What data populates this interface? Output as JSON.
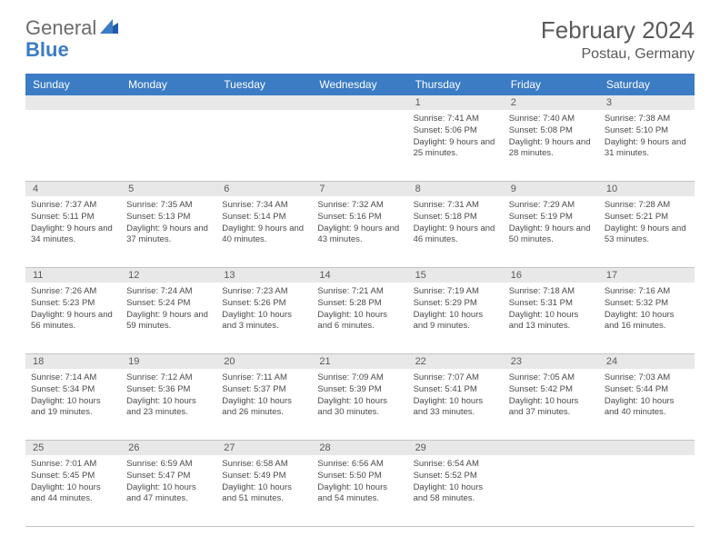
{
  "logo": {
    "word1": "General",
    "word2": "Blue"
  },
  "title": "February 2024",
  "location": "Postau, Germany",
  "colors": {
    "header_bg": "#3b7cc4",
    "daynum_bg": "#e8e8e8",
    "border": "#c4c4c4",
    "text": "#4a4a4a"
  },
  "dayNames": [
    "Sunday",
    "Monday",
    "Tuesday",
    "Wednesday",
    "Thursday",
    "Friday",
    "Saturday"
  ],
  "weeks": [
    {
      "nums": [
        "",
        "",
        "",
        "",
        "1",
        "2",
        "3"
      ],
      "cells": [
        null,
        null,
        null,
        null,
        {
          "sunrise": "Sunrise: 7:41 AM",
          "sunset": "Sunset: 5:06 PM",
          "daylight": "Daylight: 9 hours and 25 minutes."
        },
        {
          "sunrise": "Sunrise: 7:40 AM",
          "sunset": "Sunset: 5:08 PM",
          "daylight": "Daylight: 9 hours and 28 minutes."
        },
        {
          "sunrise": "Sunrise: 7:38 AM",
          "sunset": "Sunset: 5:10 PM",
          "daylight": "Daylight: 9 hours and 31 minutes."
        }
      ]
    },
    {
      "nums": [
        "4",
        "5",
        "6",
        "7",
        "8",
        "9",
        "10"
      ],
      "cells": [
        {
          "sunrise": "Sunrise: 7:37 AM",
          "sunset": "Sunset: 5:11 PM",
          "daylight": "Daylight: 9 hours and 34 minutes."
        },
        {
          "sunrise": "Sunrise: 7:35 AM",
          "sunset": "Sunset: 5:13 PM",
          "daylight": "Daylight: 9 hours and 37 minutes."
        },
        {
          "sunrise": "Sunrise: 7:34 AM",
          "sunset": "Sunset: 5:14 PM",
          "daylight": "Daylight: 9 hours and 40 minutes."
        },
        {
          "sunrise": "Sunrise: 7:32 AM",
          "sunset": "Sunset: 5:16 PM",
          "daylight": "Daylight: 9 hours and 43 minutes."
        },
        {
          "sunrise": "Sunrise: 7:31 AM",
          "sunset": "Sunset: 5:18 PM",
          "daylight": "Daylight: 9 hours and 46 minutes."
        },
        {
          "sunrise": "Sunrise: 7:29 AM",
          "sunset": "Sunset: 5:19 PM",
          "daylight": "Daylight: 9 hours and 50 minutes."
        },
        {
          "sunrise": "Sunrise: 7:28 AM",
          "sunset": "Sunset: 5:21 PM",
          "daylight": "Daylight: 9 hours and 53 minutes."
        }
      ]
    },
    {
      "nums": [
        "11",
        "12",
        "13",
        "14",
        "15",
        "16",
        "17"
      ],
      "cells": [
        {
          "sunrise": "Sunrise: 7:26 AM",
          "sunset": "Sunset: 5:23 PM",
          "daylight": "Daylight: 9 hours and 56 minutes."
        },
        {
          "sunrise": "Sunrise: 7:24 AM",
          "sunset": "Sunset: 5:24 PM",
          "daylight": "Daylight: 9 hours and 59 minutes."
        },
        {
          "sunrise": "Sunrise: 7:23 AM",
          "sunset": "Sunset: 5:26 PM",
          "daylight": "Daylight: 10 hours and 3 minutes."
        },
        {
          "sunrise": "Sunrise: 7:21 AM",
          "sunset": "Sunset: 5:28 PM",
          "daylight": "Daylight: 10 hours and 6 minutes."
        },
        {
          "sunrise": "Sunrise: 7:19 AM",
          "sunset": "Sunset: 5:29 PM",
          "daylight": "Daylight: 10 hours and 9 minutes."
        },
        {
          "sunrise": "Sunrise: 7:18 AM",
          "sunset": "Sunset: 5:31 PM",
          "daylight": "Daylight: 10 hours and 13 minutes."
        },
        {
          "sunrise": "Sunrise: 7:16 AM",
          "sunset": "Sunset: 5:32 PM",
          "daylight": "Daylight: 10 hours and 16 minutes."
        }
      ]
    },
    {
      "nums": [
        "18",
        "19",
        "20",
        "21",
        "22",
        "23",
        "24"
      ],
      "cells": [
        {
          "sunrise": "Sunrise: 7:14 AM",
          "sunset": "Sunset: 5:34 PM",
          "daylight": "Daylight: 10 hours and 19 minutes."
        },
        {
          "sunrise": "Sunrise: 7:12 AM",
          "sunset": "Sunset: 5:36 PM",
          "daylight": "Daylight: 10 hours and 23 minutes."
        },
        {
          "sunrise": "Sunrise: 7:11 AM",
          "sunset": "Sunset: 5:37 PM",
          "daylight": "Daylight: 10 hours and 26 minutes."
        },
        {
          "sunrise": "Sunrise: 7:09 AM",
          "sunset": "Sunset: 5:39 PM",
          "daylight": "Daylight: 10 hours and 30 minutes."
        },
        {
          "sunrise": "Sunrise: 7:07 AM",
          "sunset": "Sunset: 5:41 PM",
          "daylight": "Daylight: 10 hours and 33 minutes."
        },
        {
          "sunrise": "Sunrise: 7:05 AM",
          "sunset": "Sunset: 5:42 PM",
          "daylight": "Daylight: 10 hours and 37 minutes."
        },
        {
          "sunrise": "Sunrise: 7:03 AM",
          "sunset": "Sunset: 5:44 PM",
          "daylight": "Daylight: 10 hours and 40 minutes."
        }
      ]
    },
    {
      "nums": [
        "25",
        "26",
        "27",
        "28",
        "29",
        "",
        ""
      ],
      "cells": [
        {
          "sunrise": "Sunrise: 7:01 AM",
          "sunset": "Sunset: 5:45 PM",
          "daylight": "Daylight: 10 hours and 44 minutes."
        },
        {
          "sunrise": "Sunrise: 6:59 AM",
          "sunset": "Sunset: 5:47 PM",
          "daylight": "Daylight: 10 hours and 47 minutes."
        },
        {
          "sunrise": "Sunrise: 6:58 AM",
          "sunset": "Sunset: 5:49 PM",
          "daylight": "Daylight: 10 hours and 51 minutes."
        },
        {
          "sunrise": "Sunrise: 6:56 AM",
          "sunset": "Sunset: 5:50 PM",
          "daylight": "Daylight: 10 hours and 54 minutes."
        },
        {
          "sunrise": "Sunrise: 6:54 AM",
          "sunset": "Sunset: 5:52 PM",
          "daylight": "Daylight: 10 hours and 58 minutes."
        },
        null,
        null
      ]
    }
  ]
}
